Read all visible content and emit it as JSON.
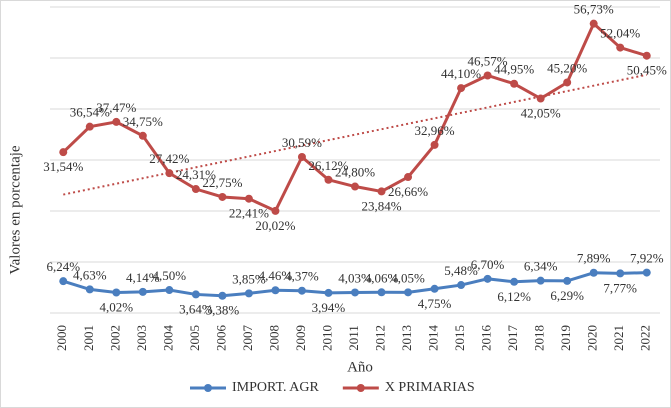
{
  "chart_data": {
    "type": "line",
    "y_label": "Valores en porcentaje",
    "x_label": "Año",
    "categories": [
      "2000",
      "2001",
      "2002",
      "2003",
      "2004",
      "2005",
      "2006",
      "2007",
      "2008",
      "2009",
      "2010",
      "2011",
      "2012",
      "2013",
      "2014",
      "2015",
      "2016",
      "2017",
      "2018",
      "2019",
      "2020",
      "2021",
      "2022"
    ],
    "series": [
      {
        "name": "IMPORT. AGR",
        "color": "#4a7ebf",
        "values": [
          6.24,
          4.63,
          4.02,
          4.14,
          4.5,
          3.64,
          3.38,
          3.85,
          4.46,
          4.37,
          3.94,
          4.03,
          4.06,
          4.05,
          4.75,
          5.48,
          6.7,
          6.12,
          6.34,
          6.29,
          7.89,
          7.77,
          7.92
        ],
        "value_labels": [
          "6,24%",
          "4,63%",
          "4,02%",
          "4,14%",
          "4,50%",
          "3,64%",
          "3,38%",
          "3,85%",
          "4,46%",
          "4,37%",
          "3,94%",
          "4,03%",
          "4,06%",
          "4,05%",
          "4,75%",
          "5,48%",
          "6,70%",
          "6,12%",
          "6,34%",
          "6,29%",
          "7,89%",
          "7,77%",
          "7,92%"
        ]
      },
      {
        "name": "X PRIMARIAS",
        "color": "#be4b48",
        "trendline": true,
        "values": [
          31.54,
          36.54,
          37.47,
          34.75,
          27.42,
          24.31,
          22.75,
          22.41,
          20.02,
          30.59,
          26.12,
          24.8,
          23.84,
          26.66,
          32.96,
          44.1,
          46.57,
          44.95,
          42.05,
          45.2,
          56.73,
          52.04,
          50.45
        ],
        "value_labels": [
          "31,54%",
          "36,54%",
          "37,47%",
          "34,75%",
          "27,42%",
          "24,31%",
          "22,75%",
          "22,41%",
          "20,02%",
          "30,59%",
          "26,12%",
          "24,80%",
          "23,84%",
          "26,66%",
          "32,96%",
          "44,10%",
          "46,57%",
          "44,95%",
          "42,05%",
          "45,20%",
          "56,73%",
          "52,04%",
          "50,45%"
        ]
      }
    ],
    "ylim": [
      0,
      60
    ],
    "yticks": [
      0,
      10,
      20,
      30,
      40,
      50,
      60
    ],
    "grid": true,
    "legend": "bottom"
  }
}
